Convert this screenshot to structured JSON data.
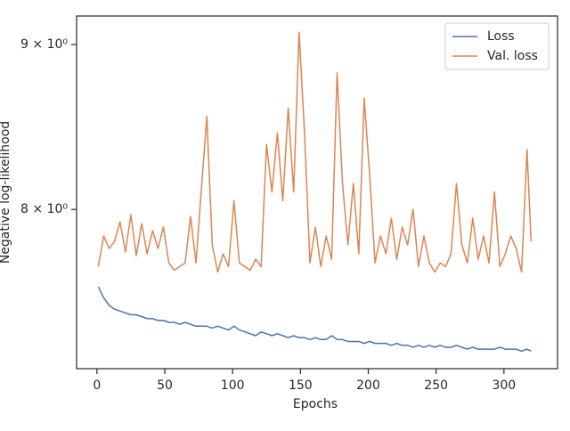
{
  "chart_data": {
    "type": "line",
    "xlabel": "Epochs",
    "ylabel": "Negative log-likelihood",
    "x": [
      1,
      5,
      9,
      13,
      17,
      21,
      25,
      29,
      33,
      37,
      41,
      45,
      49,
      53,
      57,
      61,
      65,
      69,
      73,
      77,
      81,
      85,
      89,
      93,
      97,
      101,
      105,
      109,
      113,
      117,
      121,
      125,
      129,
      133,
      137,
      141,
      145,
      149,
      153,
      157,
      161,
      165,
      169,
      173,
      177,
      181,
      185,
      189,
      193,
      197,
      201,
      205,
      209,
      213,
      217,
      221,
      225,
      229,
      233,
      237,
      241,
      245,
      249,
      253,
      257,
      261,
      265,
      269,
      273,
      277,
      281,
      285,
      289,
      293,
      297,
      301,
      305,
      309,
      313,
      317,
      320
    ],
    "series": [
      {
        "name": "Loss",
        "color": "#4c72b0",
        "values": [
          7.57,
          7.51,
          7.47,
          7.45,
          7.44,
          7.43,
          7.42,
          7.42,
          7.41,
          7.4,
          7.4,
          7.39,
          7.39,
          7.38,
          7.38,
          7.37,
          7.38,
          7.37,
          7.36,
          7.36,
          7.36,
          7.35,
          7.36,
          7.35,
          7.34,
          7.36,
          7.34,
          7.33,
          7.32,
          7.31,
          7.33,
          7.32,
          7.31,
          7.32,
          7.31,
          7.3,
          7.31,
          7.3,
          7.3,
          7.29,
          7.3,
          7.29,
          7.29,
          7.31,
          7.29,
          7.29,
          7.28,
          7.28,
          7.28,
          7.27,
          7.28,
          7.27,
          7.27,
          7.27,
          7.26,
          7.27,
          7.26,
          7.26,
          7.25,
          7.26,
          7.25,
          7.26,
          7.25,
          7.26,
          7.25,
          7.25,
          7.26,
          7.25,
          7.24,
          7.25,
          7.24,
          7.24,
          7.24,
          7.24,
          7.25,
          7.24,
          7.24,
          7.24,
          7.23,
          7.24,
          7.23
        ]
      },
      {
        "name": "Val. loss",
        "color": "#dd8452",
        "values": [
          7.68,
          7.85,
          7.78,
          7.82,
          7.93,
          7.76,
          7.97,
          7.74,
          7.92,
          7.75,
          7.88,
          7.78,
          7.9,
          7.7,
          7.66,
          7.68,
          7.7,
          7.96,
          7.7,
          8.12,
          8.55,
          7.8,
          7.65,
          7.75,
          7.68,
          8.05,
          7.7,
          7.68,
          7.66,
          7.72,
          7.68,
          8.38,
          8.1,
          8.45,
          8.05,
          8.6,
          8.1,
          9.08,
          8.45,
          7.7,
          7.9,
          7.68,
          7.85,
          7.72,
          8.82,
          8.15,
          7.8,
          8.15,
          7.75,
          8.66,
          8.2,
          7.7,
          7.85,
          7.75,
          7.95,
          7.72,
          7.9,
          7.8,
          8.0,
          7.68,
          7.85,
          7.7,
          7.65,
          7.7,
          7.68,
          7.75,
          8.15,
          7.8,
          7.7,
          7.95,
          7.72,
          7.85,
          7.7,
          8.1,
          7.68,
          7.75,
          7.85,
          7.78,
          7.65,
          8.35,
          7.82
        ]
      }
    ],
    "xlim": [
      -15,
      339.5
    ],
    "xticks": [
      0,
      50,
      100,
      150,
      200,
      250,
      300
    ],
    "ylim": [
      7.14,
      9.185
    ],
    "yscale": "log",
    "yticks": [
      {
        "value": 8,
        "label": "8 × 10⁰"
      },
      {
        "value": 9,
        "label": "9 × 10⁰"
      }
    ],
    "legend": "upper right"
  }
}
